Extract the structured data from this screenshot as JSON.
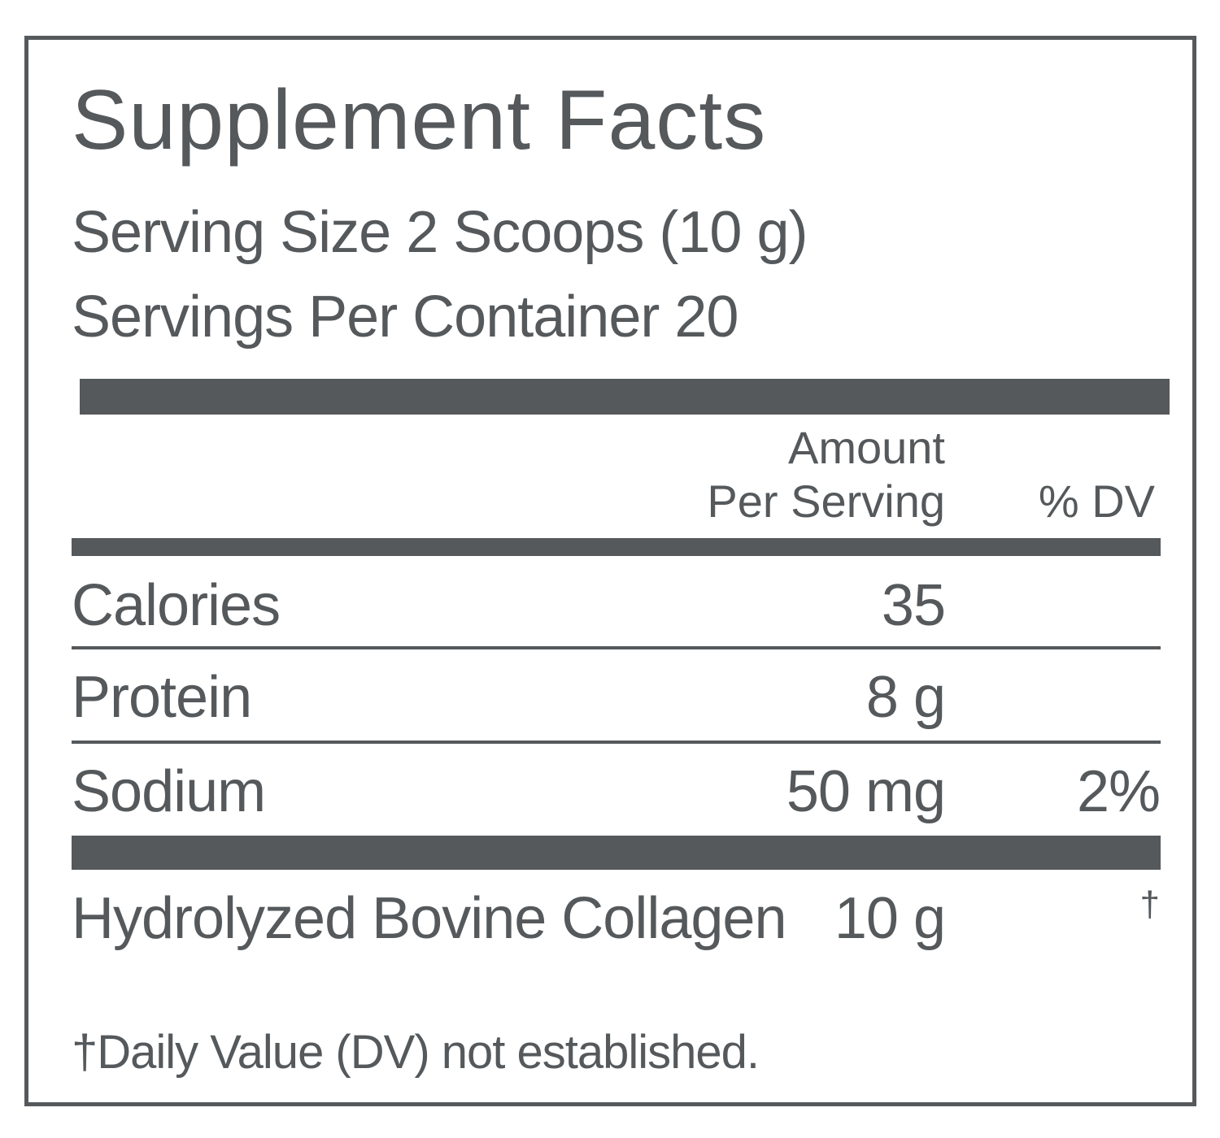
{
  "label": {
    "title": "Supplement Facts",
    "serving_size": "Serving Size 2 Scoops (10 g)",
    "servings_per_container": "Servings Per Container 20",
    "header_amount_line1": "Amount",
    "header_amount_line2": "Per Serving",
    "header_dv": "% DV",
    "rows": [
      {
        "name": "Calories",
        "amount": "35",
        "dv": ""
      },
      {
        "name": "Protein",
        "amount": "8 g",
        "dv": ""
      },
      {
        "name": "Sodium",
        "amount": "50 mg",
        "dv": "2%"
      },
      {
        "name": "Hydrolyzed Bovine Collagen",
        "amount": "10 g",
        "dv": "†"
      }
    ],
    "footnote": "†Daily Value (DV) not established."
  },
  "colors": {
    "ink": "#55595c",
    "background": "#ffffff"
  }
}
